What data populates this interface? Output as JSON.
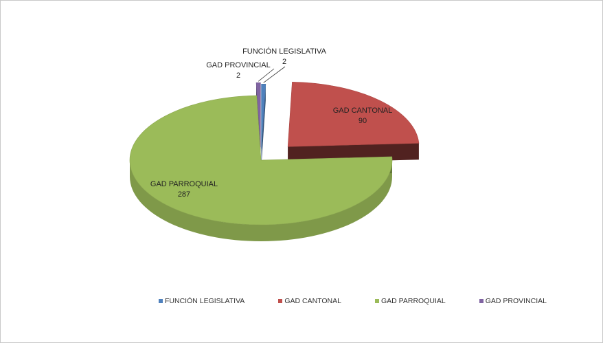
{
  "chart_data": {
    "type": "pie",
    "three_d": true,
    "exploded": true,
    "categories": [
      "FUNCIÓN LEGISLATIVA",
      "GAD CANTONAL",
      "GAD PARROQUIAL",
      "GAD PROVINCIAL"
    ],
    "values": [
      2,
      90,
      287,
      2
    ],
    "colors": [
      "#4f81bd",
      "#c0504d",
      "#9bbb59",
      "#8064a2"
    ],
    "data_labels": [
      {
        "name": "FUNCIÓN LEGISLATIVA",
        "value": "2"
      },
      {
        "name": "GAD CANTONAL",
        "value": "90"
      },
      {
        "name": "GAD PARROQUIAL",
        "value": "287"
      },
      {
        "name": "GAD PROVINCIAL",
        "value": "2"
      }
    ],
    "legend": {
      "position": "bottom",
      "items": [
        "FUNCIÓN LEGISLATIVA",
        "GAD CANTONAL",
        "GAD PARROQUIAL",
        "GAD PROVINCIAL"
      ]
    }
  }
}
